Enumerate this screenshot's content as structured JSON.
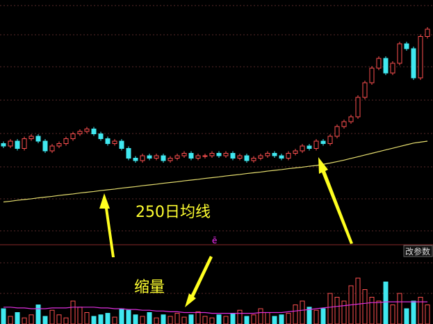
{
  "chart_data": [
    {
      "type": "candlestick",
      "ylim": [
        0,
        100
      ],
      "grid": true,
      "up_color": "#ff5050",
      "down_color": "#40e8f0",
      "open": [
        41,
        40,
        42,
        39,
        43,
        44,
        42,
        38,
        40,
        41,
        43,
        45,
        46,
        47,
        45,
        43,
        41,
        42,
        39,
        35,
        34,
        36,
        35,
        36,
        34,
        35,
        36,
        37,
        35,
        36,
        36,
        37,
        36,
        37,
        35,
        36,
        34,
        35,
        36,
        37,
        36,
        35,
        37,
        38,
        40,
        39,
        42,
        41,
        44,
        48,
        50,
        52,
        60,
        66,
        72,
        76,
        70,
        74,
        82,
        80,
        68,
        85
      ],
      "close": [
        40,
        42,
        39,
        43,
        44,
        42,
        38,
        40,
        41,
        43,
        45,
        46,
        47,
        45,
        43,
        41,
        42,
        39,
        35,
        34,
        36,
        35,
        36,
        34,
        35,
        36,
        37,
        35,
        36,
        36,
        37,
        36,
        37,
        35,
        36,
        34,
        35,
        36,
        37,
        36,
        35,
        37,
        38,
        40,
        39,
        42,
        41,
        44,
        48,
        50,
        52,
        60,
        66,
        72,
        76,
        70,
        74,
        82,
        80,
        68,
        85,
        88
      ],
      "line": {
        "color": "#e8e070",
        "values": [
          17,
          17.3,
          17.7,
          18,
          18.3,
          18.7,
          19,
          19.3,
          19.7,
          20,
          20.3,
          20.7,
          21,
          21.3,
          21.7,
          22,
          22.3,
          22.7,
          23,
          23.3,
          23.7,
          24,
          24.3,
          24.7,
          25,
          25.3,
          25.7,
          26,
          26.3,
          26.7,
          27,
          27.3,
          27.7,
          28,
          28.3,
          28.7,
          29,
          29.3,
          29.7,
          30,
          30.3,
          30.7,
          31,
          31.3,
          31.7,
          32,
          32.5,
          33,
          33.6,
          34.2,
          34.9,
          35.6,
          36.3,
          37,
          37.7,
          38.4,
          39.1,
          39.8,
          40.5,
          41.2,
          41.6,
          42
        ]
      }
    },
    {
      "type": "bar",
      "ylim": [
        0,
        100
      ],
      "values": [
        20,
        10,
        15,
        8,
        12,
        25,
        10,
        18,
        12,
        8,
        30,
        22,
        15,
        10,
        12,
        14,
        9,
        20,
        18,
        12,
        10,
        15,
        8,
        12,
        10,
        14,
        9,
        12,
        16,
        10,
        8,
        12,
        10,
        14,
        18,
        10,
        12,
        20,
        15,
        10,
        12,
        14,
        25,
        30,
        22,
        18,
        20,
        40,
        35,
        30,
        50,
        60,
        45,
        35,
        30,
        55,
        25,
        40,
        20,
        30,
        35,
        25
      ],
      "line": {
        "color": "#e030e0",
        "values": [
          22,
          22,
          21,
          21,
          20,
          20,
          20,
          21,
          21,
          21,
          22,
          22,
          22,
          22,
          21,
          21,
          20,
          20,
          19,
          19,
          18,
          18,
          17,
          17,
          16,
          16,
          15,
          15,
          15,
          15,
          14,
          14,
          14,
          14,
          14,
          14,
          14,
          15,
          15,
          15,
          15,
          16,
          17,
          18,
          19,
          20,
          21,
          22,
          23,
          24,
          25,
          26,
          27,
          28,
          28,
          29,
          29,
          29,
          29,
          29,
          29,
          29
        ]
      }
    }
  ],
  "annotations": {
    "ma_label": "250日均线",
    "volume_label": "缩量",
    "button": "改参数",
    "marker": "ē"
  }
}
